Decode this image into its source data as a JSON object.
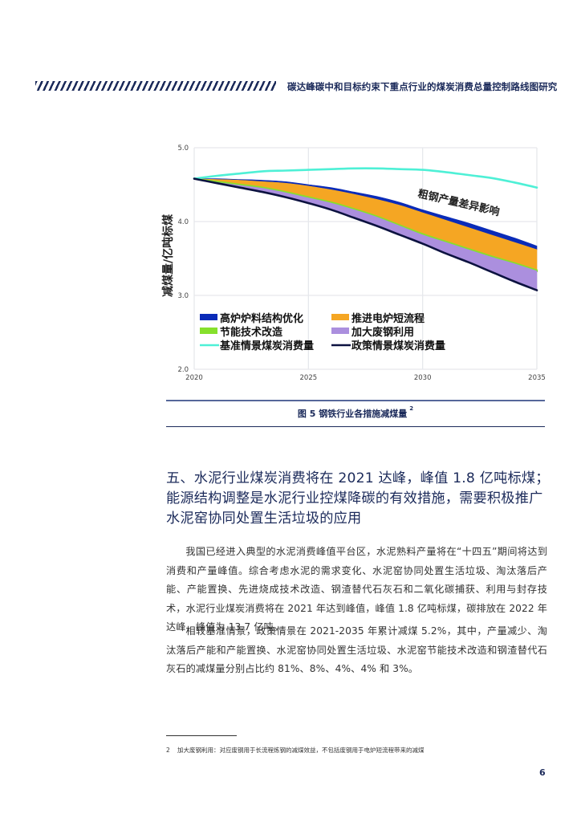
{
  "header": {
    "running_title": "碳达峰碳中和目标约束下重点行业的煤炭消费总量控制路线图研究"
  },
  "chart_data": {
    "type": "area",
    "title": "",
    "xlabel": "",
    "ylabel": "减煤量/亿吨标煤",
    "x": [
      2020,
      2021,
      2022,
      2023,
      2024,
      2025,
      2026,
      2027,
      2028,
      2029,
      2030,
      2031,
      2032,
      2033,
      2034,
      2035
    ],
    "xticks": [
      "2020",
      "2025",
      "2030",
      "2035"
    ],
    "yticks": [
      "2.0",
      "3.0",
      "4.0",
      "5.0"
    ],
    "ylim": [
      2.0,
      5.0
    ],
    "xlim": [
      2020,
      2035
    ],
    "grid": true,
    "legend_position": "lower-left inside",
    "annotation": "粗钢产量差异影响",
    "series": [
      {
        "name": "基准情景煤炭消费量",
        "type": "line",
        "color": "#4ef0d6",
        "values": [
          4.58,
          4.62,
          4.65,
          4.68,
          4.69,
          4.7,
          4.71,
          4.72,
          4.72,
          4.71,
          4.7,
          4.67,
          4.63,
          4.59,
          4.53,
          4.46
        ]
      },
      {
        "name": "高炉炉料结构优化",
        "type": "band",
        "color": "#0a2bb8",
        "upper": [
          4.58,
          4.58,
          4.57,
          4.56,
          4.54,
          4.5,
          4.46,
          4.4,
          4.34,
          4.26,
          4.16,
          4.07,
          3.98,
          3.88,
          3.78,
          3.67
        ],
        "lower": [
          4.58,
          4.57,
          4.56,
          4.54,
          4.52,
          4.48,
          4.43,
          4.37,
          4.3,
          4.22,
          4.12,
          4.02,
          3.92,
          3.82,
          3.72,
          3.62
        ]
      },
      {
        "name": "推进电炉短流程",
        "type": "band",
        "color": "#f5a623",
        "upper": [
          4.58,
          4.57,
          4.56,
          4.54,
          4.52,
          4.48,
          4.43,
          4.37,
          4.3,
          4.22,
          4.12,
          4.02,
          3.92,
          3.82,
          3.72,
          3.62
        ],
        "lower": [
          4.58,
          4.54,
          4.5,
          4.46,
          4.4,
          4.33,
          4.26,
          4.17,
          4.07,
          3.95,
          3.83,
          3.73,
          3.63,
          3.53,
          3.44,
          3.34
        ]
      },
      {
        "name": "节能技术改造",
        "type": "band",
        "color": "#86e02c",
        "upper": [
          4.58,
          4.54,
          4.5,
          4.46,
          4.4,
          4.33,
          4.26,
          4.17,
          4.07,
          3.95,
          3.83,
          3.73,
          3.63,
          3.53,
          3.44,
          3.34
        ],
        "lower": [
          4.58,
          4.53,
          4.49,
          4.45,
          4.39,
          4.32,
          4.25,
          4.16,
          4.06,
          3.94,
          3.82,
          3.72,
          3.62,
          3.52,
          3.43,
          3.33
        ]
      },
      {
        "name": "加大废钢利用",
        "type": "band",
        "color": "#ab8fde",
        "upper": [
          4.58,
          4.53,
          4.49,
          4.45,
          4.39,
          4.32,
          4.25,
          4.16,
          4.06,
          3.94,
          3.82,
          3.72,
          3.62,
          3.52,
          3.43,
          3.33
        ],
        "lower": [
          4.58,
          4.52,
          4.46,
          4.4,
          4.33,
          4.25,
          4.16,
          4.05,
          3.94,
          3.82,
          3.7,
          3.57,
          3.45,
          3.32,
          3.19,
          3.07
        ]
      },
      {
        "name": "政策情景煤炭消费量",
        "type": "line",
        "color": "#0c1240",
        "values": [
          4.58,
          4.52,
          4.46,
          4.4,
          4.33,
          4.25,
          4.16,
          4.05,
          3.94,
          3.82,
          3.7,
          3.57,
          3.45,
          3.32,
          3.19,
          3.07
        ]
      }
    ],
    "legend": [
      {
        "label": "高炉炉料结构优化",
        "color": "#0a2bb8",
        "kind": "patch"
      },
      {
        "label": "推进电炉短流程",
        "color": "#f5a623",
        "kind": "patch"
      },
      {
        "label": "节能技术改造",
        "color": "#86e02c",
        "kind": "patch"
      },
      {
        "label": "加大废钢利用",
        "color": "#ab8fde",
        "kind": "patch"
      },
      {
        "label": "基准情景煤炭消费量",
        "color": "#4ef0d6",
        "kind": "line"
      },
      {
        "label": "政策情景煤炭消费量",
        "color": "#0c1240",
        "kind": "line"
      }
    ]
  },
  "figure": {
    "caption": "图 5  钢铁行业各措施减煤量",
    "footnote_ref": "2"
  },
  "section": {
    "heading_lines": [
      "五、水泥行业煤炭消费将在 2021 达峰，峰值 1.8 亿吨标煤；",
      "能源结构调整是水泥行业控煤降碳的有效措施，需要积极推广",
      "水泥窑协同处置生活垃圾的应用"
    ],
    "paragraphs": [
      "我国已经进入典型的水泥消费峰值平台区，水泥熟料产量将在“十四五”期间将达到消费和产量峰值。综合考虑水泥的需求变化、水泥窑协同处置生活垃圾、淘汰落后产能、产能置换、先进烧成技术改造、钢渣替代石灰石和二氧化碳捕获、利用与封存技术，水泥行业煤炭消费将在 2021 年达到峰值，峰值 1.8 亿吨标煤，碳排放在 2022 年达峰，峰值为 13.7 亿吨。",
      "相较基准情景，政策情景在 2021-2035 年累计减煤 5.2%，其中，产量减少、淘汰落后产能和产能置换、水泥窑协同处置生活垃圾、水泥窑节能技术改造和钢渣替代石灰石的减煤量分别占比约 81%、8%、4%、4% 和 3%。"
    ]
  },
  "footnote": {
    "number": "2",
    "text": "加大废钢利用：对应废钢用于长流程炼钢的减煤效益，不包括废钢用于电炉短流程带来的减煤"
  },
  "page_number": "6"
}
